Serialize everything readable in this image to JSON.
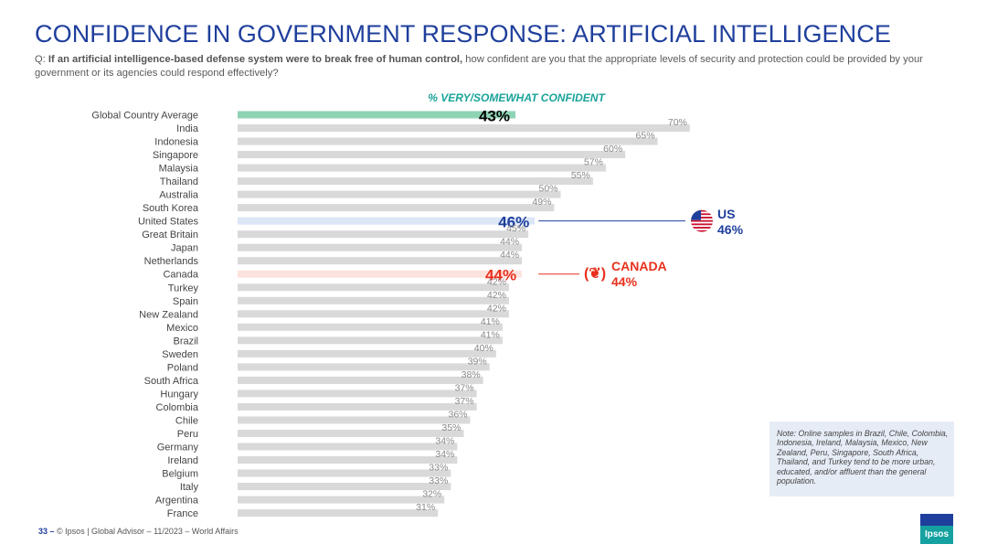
{
  "header": {
    "title": "CONFIDENCE IN GOVERNMENT RESPONSE: ARTIFICIAL INTELLIGENCE",
    "question_prefix": "Q: ",
    "question_bold": "If an artificial intelligence-based defense system were to break free of human control,",
    "question_rest": " how confident are you that the appropriate levels of security and protection could be provided by your government or its agencies could respond effectively?"
  },
  "chart_data": {
    "type": "bar",
    "orientation": "horizontal",
    "title": "% VERY/SOMEWHAT CONFIDENT",
    "categories": [
      "Global Country Average",
      "India",
      "Indonesia",
      "Singapore",
      "Malaysia",
      "Thailand",
      "Australia",
      "South Korea",
      "United States",
      "Great Britain",
      "Japan",
      "Netherlands",
      "Canada",
      "Turkey",
      "Spain",
      "New Zealand",
      "Mexico",
      "Brazil",
      "Sweden",
      "Poland",
      "South Africa",
      "Hungary",
      "Colombia",
      "Chile",
      "Peru",
      "Germany",
      "Ireland",
      "Belgium",
      "Italy",
      "Argentina",
      "France"
    ],
    "values": [
      43,
      70,
      65,
      60,
      57,
      55,
      50,
      49,
      46,
      45,
      44,
      44,
      44,
      42,
      42,
      42,
      41,
      41,
      40,
      39,
      38,
      37,
      37,
      36,
      35,
      34,
      34,
      33,
      33,
      32,
      31
    ],
    "labels": [
      "43%",
      "70%",
      "65%",
      "60%",
      "57%",
      "55%",
      "50%",
      "49%",
      "46%",
      "45%",
      "44%",
      "44%",
      "44%",
      "42%",
      "42%",
      "42%",
      "41%",
      "41%",
      "40%",
      "39%",
      "38%",
      "37%",
      "37%",
      "36%",
      "35%",
      "34%",
      "34%",
      "33%",
      "33%",
      "32%",
      "31%"
    ],
    "unit": "%",
    "xlim": [
      0,
      70
    ],
    "highlights": [
      {
        "category": "Global Country Average",
        "bar_color": "#8fd3b5",
        "label_color": "#000000"
      },
      {
        "category": "United States",
        "bar_color": "#dbe6f7",
        "label_color": "#1f3f9c"
      },
      {
        "category": "Canada",
        "bar_color": "#fde3de",
        "label_color": "#e8301d"
      }
    ],
    "default_bar_color": "#d9d9d9",
    "default_label_color": "#888888"
  },
  "callouts": {
    "us_name": "US",
    "us_value": "46%",
    "canada_name": "CANADA",
    "canada_value": "44%",
    "canada_flag": "(❦)"
  },
  "note": "Note: Online samples in Brazil, Chile, Colombia, Indonesia, Ireland, Malaysia, Mexico, New Zealand, Peru, Singapore, South Africa, Thailand, and Turkey tend to be more urban, educated, and/or affluent than the general population.",
  "footer": {
    "page": "33 –",
    "text": "© Ipsos | Global Advisor – 11/2023 – World Affairs"
  },
  "logo": {
    "text": "Ipsos"
  }
}
